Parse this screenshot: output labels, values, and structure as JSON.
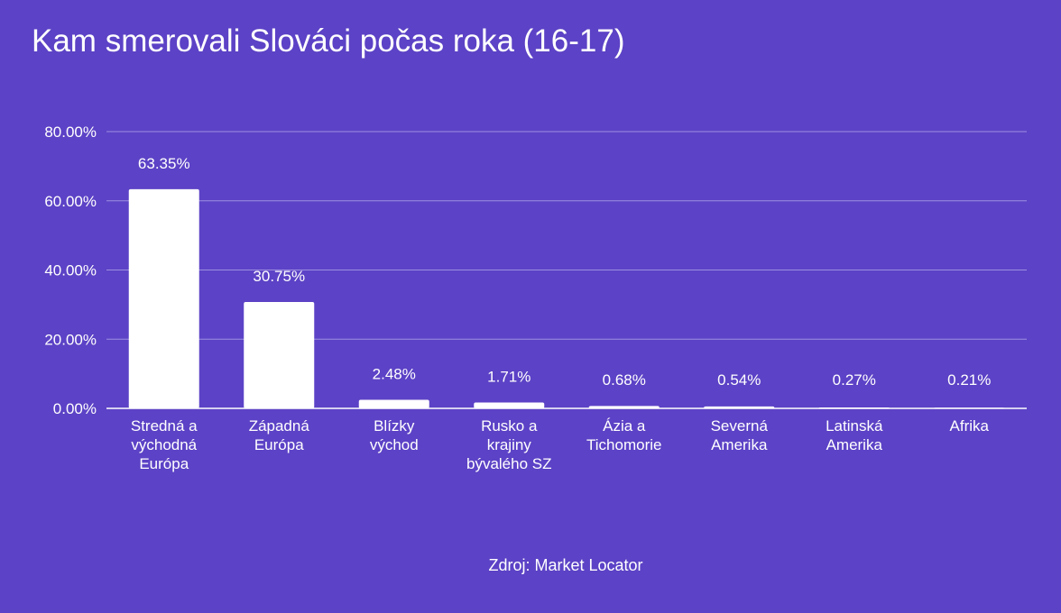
{
  "chart_data": {
    "type": "bar",
    "title": "Kam smerovali Slováci počas roka (16-17)",
    "categories": [
      "Stredná a východná Európa",
      "Západná Európa",
      "Blízky východ",
      "Rusko a krajiny bývalého SZ",
      "Ázia a Tichomorie",
      "Severná Amerika",
      "Latinská Amerika",
      "Afrika"
    ],
    "category_lines": [
      [
        "Stredná a",
        "východná",
        "Európa"
      ],
      [
        "Západná",
        "Európa"
      ],
      [
        "Blízky",
        "východ"
      ],
      [
        "Rusko a",
        "krajiny",
        "bývalého SZ"
      ],
      [
        "Ázia a",
        "Tichomorie"
      ],
      [
        "Severná",
        "Amerika"
      ],
      [
        "Latinská",
        "Amerika"
      ],
      [
        "Afrika"
      ]
    ],
    "values": [
      63.35,
      30.75,
      2.48,
      1.71,
      0.68,
      0.54,
      0.27,
      0.21
    ],
    "value_labels": [
      "63.35%",
      "30.75%",
      "2.48%",
      "1.71%",
      "0.68%",
      "0.54%",
      "0.27%",
      "0.21%"
    ],
    "y_ticks": [
      0,
      20,
      40,
      60,
      80
    ],
    "y_tick_labels": [
      "0.00%",
      "20.00%",
      "40.00%",
      "60.00%",
      "80.00%"
    ],
    "ylim": [
      0,
      80
    ],
    "grid": true,
    "legend": "none",
    "source": "Zdroj: Market Locator",
    "colors": {
      "background": "#5c42c6",
      "bar": "#ffffff",
      "text": "#ffffff",
      "grid": "#9d8fe0"
    }
  }
}
